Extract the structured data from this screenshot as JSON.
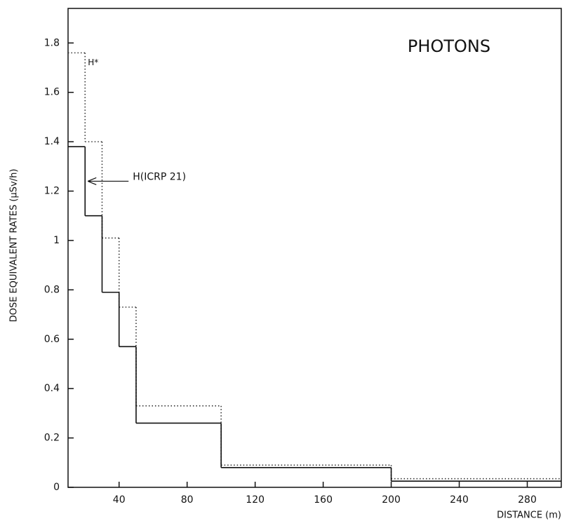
{
  "chart_data": {
    "type": "step-histogram",
    "title": "PHOTONS",
    "xlabel": "DISTANCE (m)",
    "ylabel": "DOSE EQUIVALENT RATES (µSv/h)",
    "bins": [
      10,
      20,
      30,
      40,
      50,
      100,
      200,
      300
    ],
    "series": [
      {
        "name": "H*",
        "color": "#333",
        "style": "dotted",
        "values": [
          1.76,
          1.4,
          1.01,
          0.73,
          0.33,
          0.09,
          0.035
        ]
      },
      {
        "name": "H(ICRP 21)",
        "color": "#111",
        "style": "solid",
        "values": [
          1.38,
          1.1,
          0.79,
          0.57,
          0.26,
          0.08,
          0.025
        ]
      }
    ],
    "xlim": [
      10,
      300
    ],
    "xticks": [
      40,
      80,
      120,
      160,
      200,
      240,
      280
    ],
    "ylim": [
      0,
      1.94
    ],
    "yticks": [
      0,
      0.2,
      0.4,
      0.6,
      0.8,
      1,
      1.2,
      1.4,
      1.6,
      1.8
    ],
    "grid": false
  }
}
